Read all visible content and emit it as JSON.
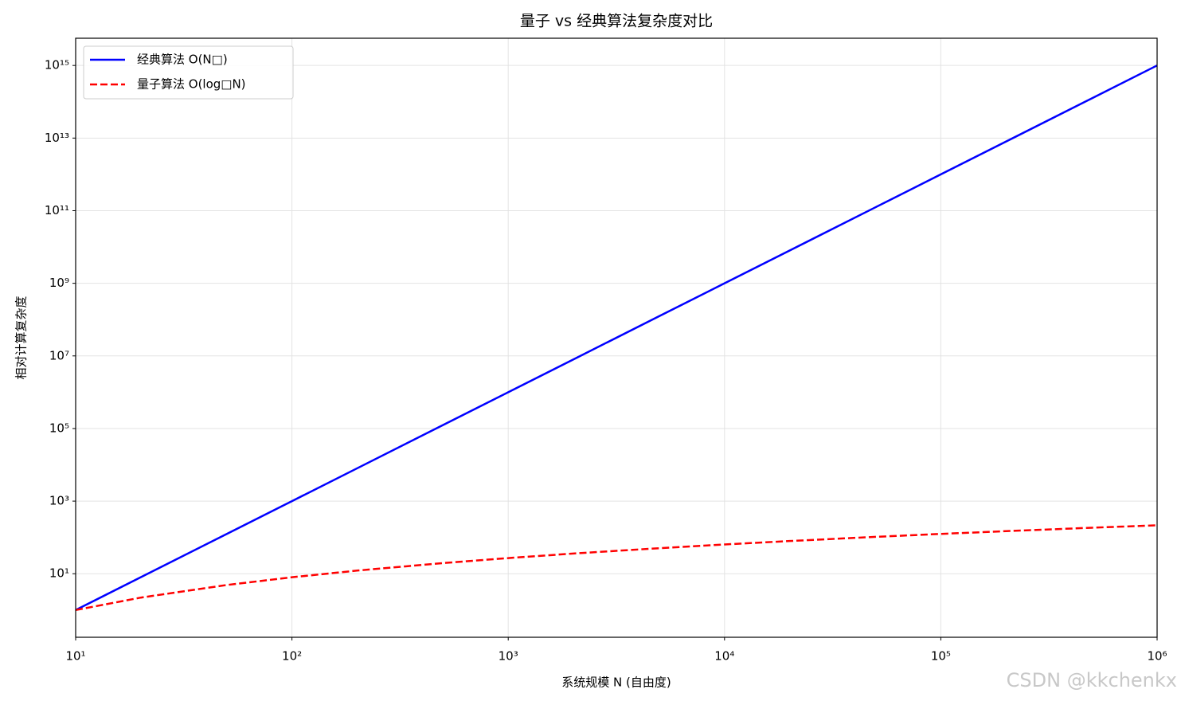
{
  "chart_data": {
    "type": "line",
    "title": "量子 vs 经典算法复杂度对比",
    "x_label": "系统规模 N (自由度)",
    "y_label": "相对计算复杂度",
    "x_scale": "log",
    "y_scale": "log",
    "grid": true,
    "legend": "upper left",
    "x": [
      10,
      20,
      50,
      100,
      200,
      500,
      1000,
      2000,
      5000,
      10000,
      20000,
      50000,
      100000,
      200000,
      500000,
      1000000
    ],
    "series": [
      {
        "name": "经典算法 O(N□)",
        "color": "#0000ff",
        "dash": false,
        "values": [
          1,
          8,
          125,
          1000,
          8000,
          125000,
          1000000,
          8000000,
          125000000,
          1000000000,
          8000000000,
          125000000000,
          1000000000000,
          8000000000000,
          125000000000000,
          1000000000000000
        ]
      },
      {
        "name": "量子算法 O(log□N)",
        "color": "#ff0000",
        "dash": true,
        "values": [
          1,
          2.2,
          4.9,
          8,
          12.2,
          19.7,
          27,
          36,
          50.6,
          64,
          79.6,
          103.8,
          125,
          149,
          185.1,
          216
        ]
      }
    ],
    "xlim": [
      10,
      1000000
    ],
    "ylim": [
      0.1778,
      5623000000000000.0
    ],
    "xticks": [
      {
        "value": 10,
        "label": "10¹"
      },
      {
        "value": 100,
        "label": "10²"
      },
      {
        "value": 1000,
        "label": "10³"
      },
      {
        "value": 10000,
        "label": "10⁴"
      },
      {
        "value": 100000,
        "label": "10⁵"
      },
      {
        "value": 1000000,
        "label": "10⁶"
      }
    ],
    "yticks": [
      {
        "value": 10,
        "label": "10¹"
      },
      {
        "value": 1000,
        "label": "10³"
      },
      {
        "value": 100000,
        "label": "10⁵"
      },
      {
        "value": 10000000,
        "label": "10⁷"
      },
      {
        "value": 1000000000,
        "label": "10⁹"
      },
      {
        "value": 100000000000,
        "label": "10¹¹"
      },
      {
        "value": 10000000000000,
        "label": "10¹³"
      },
      {
        "value": 1000000000000000,
        "label": "10¹⁵"
      }
    ],
    "watermark": "CSDN @kkchenkx"
  }
}
